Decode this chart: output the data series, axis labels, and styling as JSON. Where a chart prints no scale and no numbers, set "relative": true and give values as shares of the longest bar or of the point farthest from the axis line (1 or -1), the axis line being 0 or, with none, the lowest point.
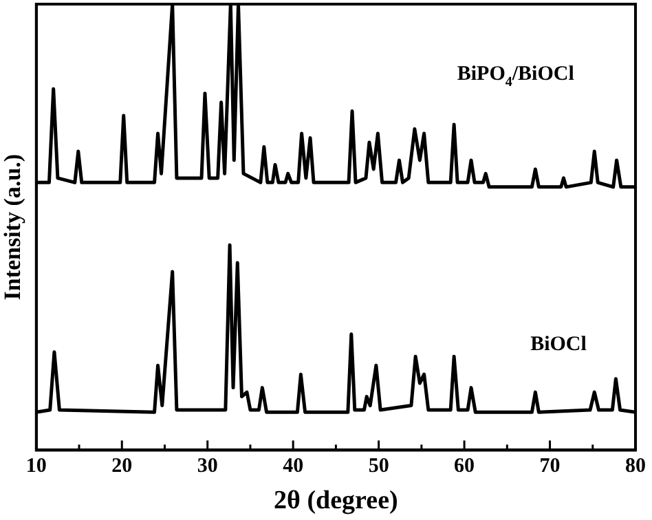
{
  "chart_data": {
    "type": "line",
    "relative": true,
    "xlabel": "2θ (degree)",
    "ylabel": "Intensity (a.u.)",
    "xlim": [
      10,
      80
    ],
    "xticks": [
      10,
      {
        "value": 15,
        "label": null
      },
      20,
      {
        "value": 25,
        "label": null
      },
      30,
      {
        "value": 35,
        "label": null
      },
      40,
      {
        "value": 45,
        "label": null
      },
      50,
      {
        "value": 55,
        "label": null
      },
      60,
      {
        "value": 65,
        "label": null
      },
      70,
      {
        "value": 75,
        "label": null
      },
      80
    ],
    "tick_labels": "x",
    "grid": false,
    "legend": false,
    "marker": "none",
    "line_style": "solid",
    "series": [
      {
        "name": "BiPO$_{4}$/BiOCl",
        "color": "#000000",
        "x": [
          10,
          11.5,
          12.0,
          12.5,
          14.5,
          14.9,
          15.3,
          19.8,
          20.2,
          20.6,
          23.8,
          24.2,
          24.6,
          25.9,
          26.4,
          29.3,
          29.7,
          30.2,
          31.2,
          31.6,
          32.0,
          32.7,
          33.1,
          33.6,
          34.2,
          36.2,
          36.6,
          37.0,
          37.6,
          37.9,
          38.3,
          39.1,
          39.4,
          39.8,
          40.6,
          41.0,
          41.5,
          42.0,
          42.4,
          46.5,
          46.9,
          47.3,
          48.5,
          48.9,
          49.4,
          49.9,
          50.4,
          52.0,
          52.4,
          52.8,
          53.5,
          54.2,
          54.8,
          55.3,
          55.8,
          58.4,
          58.8,
          59.2,
          60.4,
          60.8,
          61.2,
          62.2,
          62.5,
          62.9,
          67.9,
          68.3,
          68.7,
          71.3,
          71.6,
          71.9,
          74.8,
          75.2,
          75.6,
          77.4,
          77.8,
          78.3,
          80
        ],
        "values": [
          0.6,
          0.6,
          0.81,
          0.61,
          0.6,
          0.67,
          0.6,
          0.6,
          0.75,
          0.6,
          0.6,
          0.71,
          0.62,
          1.0,
          0.61,
          0.61,
          0.8,
          0.61,
          0.61,
          0.78,
          0.62,
          1.0,
          0.65,
          1.0,
          0.62,
          0.6,
          0.68,
          0.6,
          0.6,
          0.64,
          0.6,
          0.6,
          0.62,
          0.6,
          0.6,
          0.71,
          0.61,
          0.7,
          0.6,
          0.6,
          0.76,
          0.6,
          0.61,
          0.69,
          0.63,
          0.71,
          0.6,
          0.6,
          0.65,
          0.6,
          0.61,
          0.72,
          0.65,
          0.71,
          0.6,
          0.6,
          0.73,
          0.6,
          0.6,
          0.65,
          0.6,
          0.6,
          0.62,
          0.59,
          0.59,
          0.63,
          0.59,
          0.59,
          0.61,
          0.59,
          0.6,
          0.67,
          0.6,
          0.59,
          0.65,
          0.59,
          0.59
        ]
      },
      {
        "name": "BiOCl",
        "color": "#000000",
        "x": [
          10,
          11.6,
          12.1,
          12.7,
          23.8,
          24.2,
          24.7,
          25.9,
          26.4,
          32.1,
          32.6,
          33.0,
          33.5,
          34.0,
          34.6,
          35.0,
          36.0,
          36.4,
          36.9,
          40.5,
          40.9,
          41.4,
          46.4,
          46.8,
          47.2,
          48.3,
          48.6,
          49.0,
          49.7,
          50.2,
          53.8,
          54.3,
          54.8,
          55.3,
          55.8,
          58.4,
          58.8,
          59.3,
          60.4,
          60.8,
          61.3,
          67.9,
          68.3,
          68.7,
          74.7,
          75.2,
          75.7,
          77.3,
          77.7,
          78.2,
          80
        ],
        "values": [
          0.085,
          0.09,
          0.22,
          0.09,
          0.085,
          0.19,
          0.1,
          0.4,
          0.09,
          0.09,
          0.46,
          0.14,
          0.42,
          0.12,
          0.13,
          0.09,
          0.09,
          0.14,
          0.085,
          0.085,
          0.17,
          0.085,
          0.085,
          0.26,
          0.09,
          0.09,
          0.12,
          0.1,
          0.19,
          0.09,
          0.1,
          0.21,
          0.15,
          0.17,
          0.09,
          0.09,
          0.21,
          0.09,
          0.09,
          0.14,
          0.085,
          0.085,
          0.13,
          0.085,
          0.09,
          0.13,
          0.09,
          0.09,
          0.16,
          0.09,
          0.085
        ]
      }
    ]
  }
}
